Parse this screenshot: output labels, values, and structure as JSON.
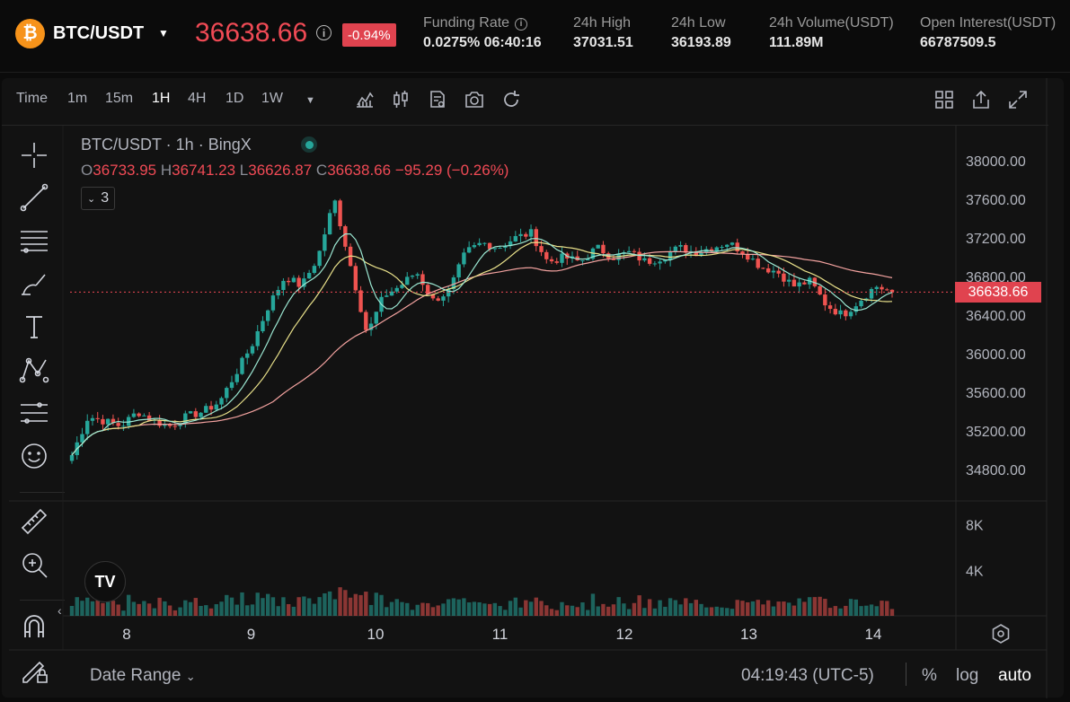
{
  "ticker": {
    "coin_symbol": "₿",
    "pair": "BTC/USDT",
    "last_price": "36638.66",
    "change_pct": "-0.94%",
    "stats": [
      {
        "label": "Funding Rate",
        "value": "0.0275% 06:40:16",
        "has_info": true
      },
      {
        "label": "24h High",
        "value": "37031.51"
      },
      {
        "label": "24h Low",
        "value": "36193.89"
      },
      {
        "label": "24h Volume(USDT)",
        "value": "111.89M"
      },
      {
        "label": "Open Interest(USDT)",
        "value": "66787509.5"
      }
    ]
  },
  "toolbar": {
    "time_label": "Time",
    "intervals": [
      "1m",
      "15m",
      "1H",
      "4H",
      "1D",
      "1W"
    ],
    "active_interval": "1H",
    "icons": [
      "indicators-icon",
      "candle-type-icon",
      "templates-icon",
      "snapshot-icon",
      "reset-icon"
    ],
    "right_icons": [
      "layout-icon",
      "share-icon",
      "fullscreen-icon"
    ]
  },
  "legend": {
    "title": "BTC/USDT · 1h · BingX",
    "open_label": "O",
    "open": "36733.95",
    "high_label": "H",
    "high": "36741.23",
    "low_label": "L",
    "low": "36626.87",
    "close_label": "C",
    "close": "36638.66",
    "change": "−95.29 (−0.26%)",
    "indicator_count": "3"
  },
  "price_tag": "36638.66",
  "bottom": {
    "date_range": "Date Range",
    "clock": "04:19:43 (UTC-5)",
    "options": [
      "%",
      "log",
      "auto"
    ],
    "active_option": "auto"
  },
  "colors": {
    "up": "#26a69a",
    "down": "#ef5350",
    "accent": "#f04a55",
    "ma_fast": "#9be7d2",
    "ma_mid": "#e8e08a",
    "ma_slow": "#f4a3a0"
  },
  "chart_data": {
    "type": "candlestick",
    "price_axis_ticks": [
      38000,
      37600,
      37200,
      36800,
      36400,
      36000,
      35600,
      35200,
      34800
    ],
    "price_axis_labels": [
      "38000.00",
      "37600.00",
      "37200.00",
      "36800.00",
      "36400.00",
      "36000.00",
      "35600.00",
      "35200.00",
      "34800.00"
    ],
    "volume_axis_ticks": [
      8000,
      4000
    ],
    "volume_axis_labels": [
      "8K",
      "4K"
    ],
    "x_axis_labels": [
      "8",
      "9",
      "10",
      "11",
      "12",
      "13",
      "14"
    ],
    "current_price": 36638.66,
    "series_close_approx": [
      34950,
      35350,
      35300,
      35250,
      35400,
      35300,
      35250,
      35350,
      35400,
      35500,
      35800,
      36100,
      36500,
      36800,
      36700,
      37000,
      37600,
      36900,
      36200,
      36600,
      36700,
      36850,
      36550,
      36650,
      37050,
      37150,
      37100,
      37200,
      37250,
      36950,
      37000,
      36950,
      37100,
      37000,
      37050,
      36950,
      37000,
      37100,
      37050,
      37100,
      37150,
      37050,
      36900,
      36850,
      36700,
      36750,
      36500,
      36400,
      36550,
      36700,
      36639
    ]
  }
}
